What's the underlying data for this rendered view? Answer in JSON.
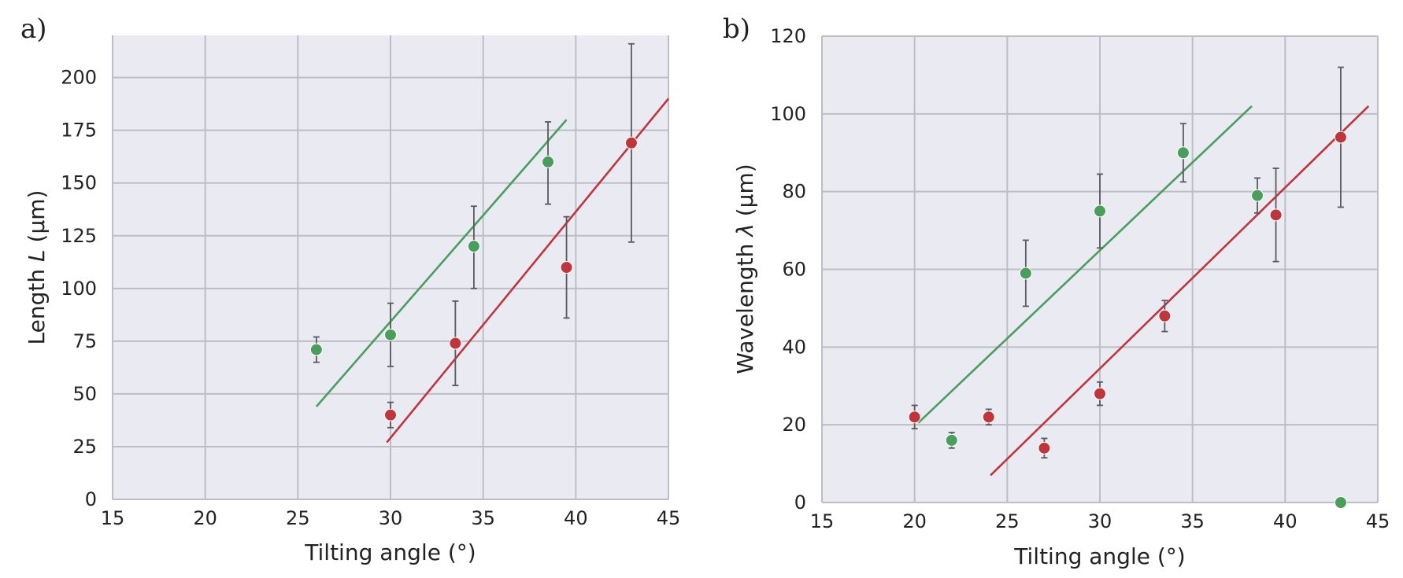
{
  "figure": {
    "panels": [
      {
        "id": "a",
        "label": "a)"
      },
      {
        "id": "b",
        "label": "b)"
      }
    ]
  },
  "colors": {
    "green": "#4a9e5c",
    "red": "#c0353c",
    "plot_background": "#eaeaf2",
    "grid": "#bdbdc4"
  },
  "chart_data": [
    {
      "panel": "a)",
      "type": "scatter",
      "xlabel": "Tilting angle (°)",
      "ylabel_prefix": "Length ",
      "ylabel_symbol": "L",
      "ylabel_suffix": " (μm)",
      "xlim": [
        15,
        45
      ],
      "ylim": [
        0,
        220
      ],
      "xticks": [
        15,
        20,
        25,
        30,
        35,
        40,
        45
      ],
      "yticks": [
        0,
        25,
        50,
        75,
        100,
        125,
        150,
        175,
        200
      ],
      "grid": true,
      "series": [
        {
          "color": "#4a9e5c",
          "points": [
            {
              "x": 26,
              "y": 71,
              "err_lo": 65,
              "err_hi": 77
            },
            {
              "x": 30,
              "y": 78,
              "err_lo": 63,
              "err_hi": 93
            },
            {
              "x": 34.5,
              "y": 120,
              "err_lo": 100,
              "err_hi": 139
            },
            {
              "x": 38.5,
              "y": 160,
              "err_lo": 140,
              "err_hi": 179
            }
          ],
          "fit": [
            [
              26,
              44
            ],
            [
              39.5,
              180
            ]
          ]
        },
        {
          "color": "#c0353c",
          "points": [
            {
              "x": 30,
              "y": 40,
              "err_lo": 34,
              "err_hi": 46
            },
            {
              "x": 33.5,
              "y": 74,
              "err_lo": 54,
              "err_hi": 94
            },
            {
              "x": 39.5,
              "y": 110,
              "err_lo": 86,
              "err_hi": 134
            },
            {
              "x": 43,
              "y": 169,
              "err_lo": 122,
              "err_hi": 216
            }
          ],
          "fit": [
            [
              29.8,
              27
            ],
            [
              45,
              190
            ]
          ]
        }
      ]
    },
    {
      "panel": "b)",
      "type": "scatter",
      "xlabel": "Tilting angle (°)",
      "ylabel_prefix": "Wavelength ",
      "ylabel_symbol": "λ",
      "ylabel_suffix": " (μm)",
      "xlim": [
        15,
        45
      ],
      "ylim": [
        0,
        120
      ],
      "xticks": [
        15,
        20,
        25,
        30,
        35,
        40,
        45
      ],
      "yticks": [
        0,
        20,
        40,
        60,
        80,
        100,
        120
      ],
      "grid": true,
      "series": [
        {
          "color": "#4a9e5c",
          "points": [
            {
              "x": 22,
              "y": 16,
              "err_lo": 14,
              "err_hi": 18
            },
            {
              "x": 26,
              "y": 59,
              "err_lo": 50.5,
              "err_hi": 67.5
            },
            {
              "x": 30,
              "y": 75,
              "err_lo": 65.5,
              "err_hi": 84.5
            },
            {
              "x": 34.5,
              "y": 90,
              "err_lo": 82.5,
              "err_hi": 97.5
            },
            {
              "x": 38.5,
              "y": 79,
              "err_lo": 74.5,
              "err_hi": 83.5
            },
            {
              "x": 43,
              "y": 0
            }
          ],
          "fit": [
            [
              20.2,
              20.5
            ],
            [
              38.2,
              102
            ]
          ]
        },
        {
          "color": "#c0353c",
          "points": [
            {
              "x": 20,
              "y": 22,
              "err_lo": 19,
              "err_hi": 25
            },
            {
              "x": 24,
              "y": 22,
              "err_lo": 20,
              "err_hi": 24
            },
            {
              "x": 27,
              "y": 14,
              "err_lo": 11.5,
              "err_hi": 16.5
            },
            {
              "x": 30,
              "y": 28,
              "err_lo": 25,
              "err_hi": 31
            },
            {
              "x": 33.5,
              "y": 48,
              "err_lo": 44,
              "err_hi": 52
            },
            {
              "x": 39.5,
              "y": 74,
              "err_lo": 62,
              "err_hi": 86
            },
            {
              "x": 43,
              "y": 94,
              "err_lo": 76,
              "err_hi": 112
            }
          ],
          "fit": [
            [
              24.1,
              7
            ],
            [
              44.5,
              102
            ]
          ]
        }
      ]
    }
  ]
}
